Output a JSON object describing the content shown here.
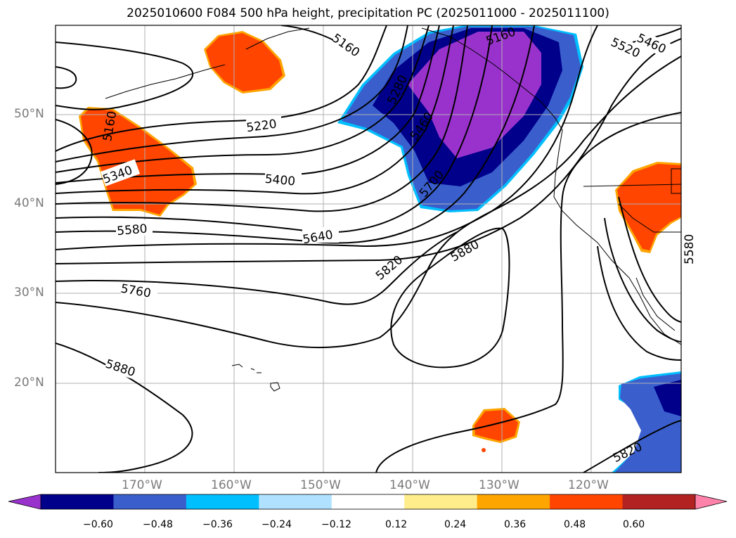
{
  "title": "2025010600 F084 500 hPa height, precipitation PC (2025011000 - 2025011100)",
  "latitude_labels": [
    "50°N",
    "40°N",
    "30°N",
    "20°N"
  ],
  "longitude_labels": [
    "170°W",
    "160°W",
    "150°W",
    "140°W",
    "130°W",
    "120°W"
  ],
  "contour_labels": [
    "5160",
    "5520",
    "5460",
    "5160",
    "5220",
    "5280",
    "5460",
    "5160",
    "5340",
    "5400",
    "5700",
    "5580",
    "5640",
    "5880",
    "5820",
    "5760",
    "5580",
    "5880",
    "5820",
    "5580"
  ],
  "colorbar": {
    "colors": [
      "#9932cc",
      "#00008b",
      "#3a5fcd",
      "#00bfff",
      "#b0e2ff",
      "#ffffff",
      "#ffec8b",
      "#ffa500",
      "#ff4500",
      "#b22222",
      "#ff82ab"
    ],
    "ticks": [
      "−0.60",
      "−0.48",
      "−0.36",
      "−0.24",
      "−0.12",
      "0.12",
      "0.24",
      "0.36",
      "0.48",
      "0.60"
    ]
  },
  "field_colors": {
    "positive": "#ff4500",
    "positive_edge": "#ffa500",
    "negative_core": "#9932cc",
    "negative_mid": "#00008b",
    "negative_outer": "#3a5fcd",
    "negative_edge": "#00bfff"
  }
}
